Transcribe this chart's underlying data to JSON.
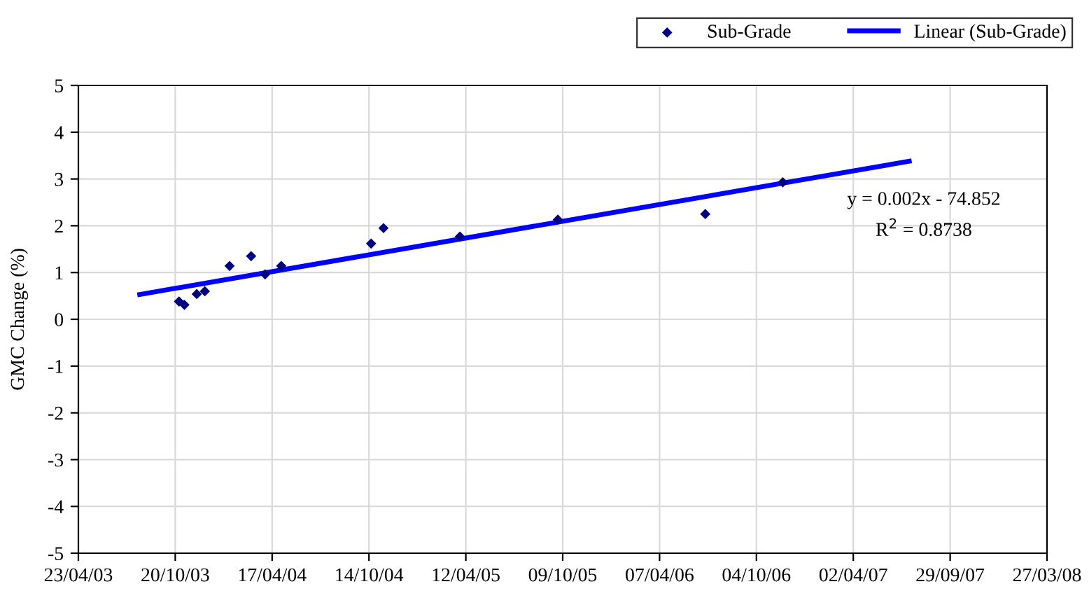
{
  "chart_data": {
    "type": "scatter",
    "ylabel": "GMC Change (%)",
    "xlim": [
      "2003-04-23",
      "2008-03-27"
    ],
    "xticks": [
      {
        "value": "2003-04-23",
        "label": "23/04/03"
      },
      {
        "value": "2003-10-20",
        "label": "20/10/03"
      },
      {
        "value": "2004-04-17",
        "label": "17/04/04"
      },
      {
        "value": "2004-10-14",
        "label": "14/10/04"
      },
      {
        "value": "2005-04-12",
        "label": "12/04/05"
      },
      {
        "value": "2005-10-09",
        "label": "09/10/05"
      },
      {
        "value": "2006-04-07",
        "label": "07/04/06"
      },
      {
        "value": "2006-10-04",
        "label": "04/10/06"
      },
      {
        "value": "2007-04-02",
        "label": "02/04/07"
      },
      {
        "value": "2007-09-29",
        "label": "29/09/07"
      },
      {
        "value": "2008-03-27",
        "label": "27/03/08"
      }
    ],
    "ylim": [
      -5,
      5
    ],
    "yticks": [
      -5,
      -4,
      -3,
      -2,
      -1,
      0,
      1,
      2,
      3,
      4,
      5
    ],
    "grid": true,
    "legend": "top right",
    "series": [
      {
        "name": "Sub-Grade",
        "marker": "diamond",
        "color": "#000080",
        "x": [
          "2003-10-27",
          "2003-11-06",
          "2003-11-29",
          "2003-12-14",
          "2004-01-29",
          "2004-03-09",
          "2004-04-04",
          "2004-05-04",
          "2004-10-18",
          "2004-11-10",
          "2005-04-01",
          "2005-09-30",
          "2006-07-01",
          "2006-11-22"
        ],
        "values": [
          0.38,
          0.31,
          0.54,
          0.6,
          1.14,
          1.35,
          0.96,
          1.14,
          1.62,
          1.95,
          1.77,
          2.13,
          2.25,
          2.93
        ]
      },
      {
        "name": "Linear (Sub-Grade)",
        "type": "line",
        "color": "#0000ff",
        "x": [
          "2003-08-15",
          "2007-07-15"
        ],
        "values": [
          0.53,
          3.38
        ]
      }
    ],
    "annotations": [
      "y = 0.002x - 74.852",
      "R$^{2}$ = 0.8738"
    ]
  }
}
